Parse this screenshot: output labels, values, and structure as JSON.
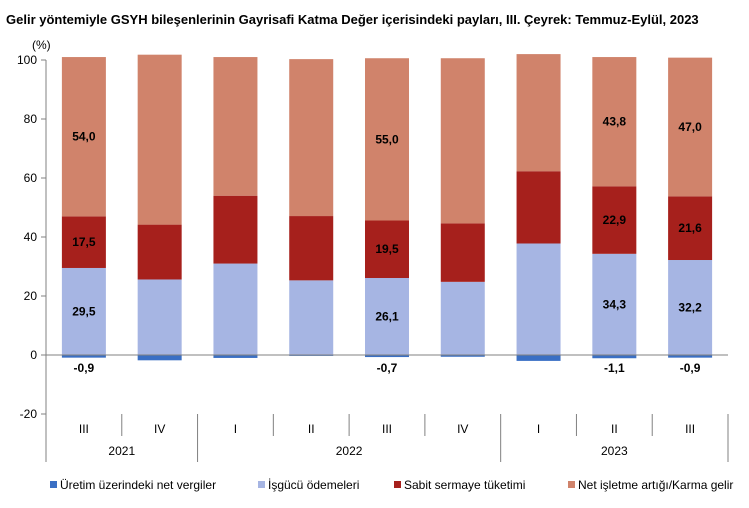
{
  "chart_data": {
    "type": "bar",
    "stacked": true,
    "title": "Gelir yöntemiyle GSYH bileşenlerinin Gayrisafi Katma Değer içerisindeki payları, III. Çeyrek: Temmuz-Eylül, 2023",
    "y_unit": "(%)",
    "ylim": [
      -20,
      100
    ],
    "yticks": [
      -20,
      0,
      20,
      40,
      60,
      80,
      100
    ],
    "grid": false,
    "legend_position": "bottom",
    "categories": [
      "III",
      "IV",
      "I",
      "II",
      "III",
      "IV",
      "I",
      "II",
      "III"
    ],
    "year_groups": [
      {
        "label": "2021",
        "start": 0,
        "end": 1
      },
      {
        "label": "2022",
        "start": 2,
        "end": 5
      },
      {
        "label": "2023",
        "start": 6,
        "end": 8
      }
    ],
    "series": [
      {
        "name": "Üretim üzerindeki net vergiler",
        "color": "#3a6fc4",
        "values": [
          -0.9,
          -1.8,
          -1.0,
          -0.3,
          -0.7,
          -0.6,
          -2.0,
          -1.1,
          -0.9
        ]
      },
      {
        "name": "İşgücü ödemeleri",
        "color": "#a6b5e3",
        "values": [
          29.5,
          25.6,
          31.0,
          25.3,
          26.1,
          24.8,
          37.8,
          34.3,
          32.2
        ]
      },
      {
        "name": "Sabit sermaye tüketimi",
        "color": "#a6201c",
        "values": [
          17.5,
          18.6,
          23.0,
          21.8,
          19.5,
          19.8,
          24.5,
          22.9,
          21.6
        ]
      },
      {
        "name": "Net işletme artığı/Karma gelir",
        "color": "#d0836b",
        "values": [
          54.0,
          57.6,
          47.0,
          53.2,
          55.0,
          56.0,
          39.7,
          43.8,
          47.0
        ]
      }
    ],
    "data_labels": [
      {
        "series": 0,
        "index": 0,
        "text": "-0,9"
      },
      {
        "series": 0,
        "index": 4,
        "text": "-0,7"
      },
      {
        "series": 0,
        "index": 7,
        "text": "-1,1"
      },
      {
        "series": 0,
        "index": 8,
        "text": "-0,9"
      },
      {
        "series": 1,
        "index": 0,
        "text": "29,5"
      },
      {
        "series": 1,
        "index": 4,
        "text": "26,1"
      },
      {
        "series": 1,
        "index": 7,
        "text": "34,3"
      },
      {
        "series": 1,
        "index": 8,
        "text": "32,2"
      },
      {
        "series": 2,
        "index": 0,
        "text": "17,5"
      },
      {
        "series": 2,
        "index": 4,
        "text": "19,5"
      },
      {
        "series": 2,
        "index": 7,
        "text": "22,9"
      },
      {
        "series": 2,
        "index": 8,
        "text": "21,6"
      },
      {
        "series": 3,
        "index": 0,
        "text": "54,0"
      },
      {
        "series": 3,
        "index": 4,
        "text": "55,0"
      },
      {
        "series": 3,
        "index": 7,
        "text": "43,8"
      },
      {
        "series": 3,
        "index": 8,
        "text": "47,0"
      }
    ]
  }
}
